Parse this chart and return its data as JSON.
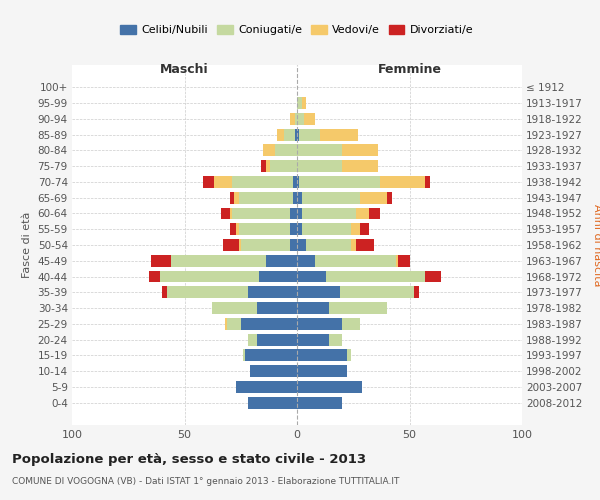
{
  "age_groups": [
    "100+",
    "95-99",
    "90-94",
    "85-89",
    "80-84",
    "75-79",
    "70-74",
    "65-69",
    "60-64",
    "55-59",
    "50-54",
    "45-49",
    "40-44",
    "35-39",
    "30-34",
    "25-29",
    "20-24",
    "15-19",
    "10-14",
    "5-9",
    "0-4"
  ],
  "birth_years": [
    "≤ 1912",
    "1913-1917",
    "1918-1922",
    "1923-1927",
    "1928-1932",
    "1933-1937",
    "1938-1942",
    "1943-1947",
    "1948-1952",
    "1953-1957",
    "1958-1962",
    "1963-1967",
    "1968-1972",
    "1973-1977",
    "1978-1982",
    "1983-1987",
    "1988-1992",
    "1993-1997",
    "1998-2002",
    "2003-2007",
    "2008-2012"
  ],
  "males": {
    "celibi": [
      0,
      0,
      0,
      1,
      0,
      0,
      2,
      2,
      3,
      3,
      3,
      14,
      17,
      22,
      18,
      25,
      18,
      23,
      21,
      27,
      22
    ],
    "coniugati": [
      0,
      0,
      1,
      5,
      10,
      12,
      27,
      24,
      26,
      23,
      22,
      42,
      44,
      36,
      20,
      6,
      4,
      1,
      0,
      0,
      0
    ],
    "vedovi": [
      0,
      0,
      2,
      3,
      5,
      2,
      8,
      2,
      1,
      1,
      1,
      0,
      0,
      0,
      0,
      1,
      0,
      0,
      0,
      0,
      0
    ],
    "divorziati": [
      0,
      0,
      0,
      0,
      0,
      2,
      5,
      2,
      4,
      3,
      7,
      9,
      5,
      2,
      0,
      0,
      0,
      0,
      0,
      0,
      0
    ]
  },
  "females": {
    "nubili": [
      0,
      0,
      0,
      1,
      0,
      0,
      1,
      2,
      2,
      2,
      4,
      8,
      13,
      19,
      14,
      20,
      14,
      22,
      22,
      29,
      20
    ],
    "coniugate": [
      0,
      2,
      3,
      9,
      20,
      20,
      36,
      26,
      24,
      22,
      20,
      36,
      44,
      33,
      26,
      8,
      6,
      2,
      0,
      0,
      0
    ],
    "vedove": [
      0,
      2,
      5,
      17,
      16,
      16,
      20,
      12,
      6,
      4,
      2,
      1,
      0,
      0,
      0,
      0,
      0,
      0,
      0,
      0,
      0
    ],
    "divorziate": [
      0,
      0,
      0,
      0,
      0,
      0,
      2,
      2,
      5,
      4,
      8,
      5,
      7,
      2,
      0,
      0,
      0,
      0,
      0,
      0,
      0
    ]
  },
  "colors": {
    "celibi": "#4472a8",
    "coniugati": "#c5d9a0",
    "vedovi": "#f5c96a",
    "divorziati": "#cc2222"
  },
  "xlim": 100,
  "title": "Popolazione per età, sesso e stato civile - 2013",
  "subtitle": "COMUNE DI VOGOGNA (VB) - Dati ISTAT 1° gennaio 2013 - Elaborazione TUTTITALIA.IT",
  "ylabel_left": "Fasce di età",
  "ylabel_right": "Anni di nascita",
  "xlabel_left": "Maschi",
  "xlabel_right": "Femmine",
  "bg_color": "#f5f5f5",
  "plot_bg_color": "#ffffff"
}
